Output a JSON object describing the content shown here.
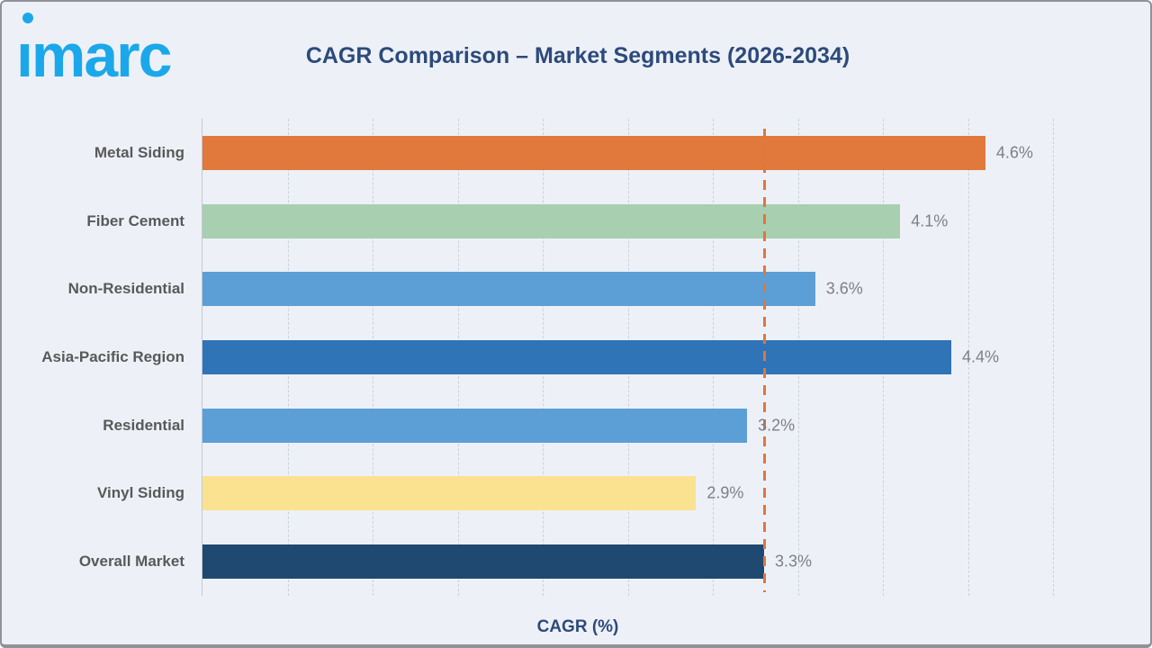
{
  "header": {
    "logo_text": "ımarc",
    "logo_color": "#1BA8EA",
    "title": "CAGR Comparison – Market Segments (2026-2034)"
  },
  "chart_data": {
    "type": "bar",
    "orientation": "horizontal",
    "title": "CAGR Comparison – Market Segments (2026-2034)",
    "xlabel": "CAGR (%)",
    "ylabel": "",
    "xlim": [
      0,
      5.5
    ],
    "grid": true,
    "gridline_interval_pct": 0.5,
    "categories": [
      "Metal Siding",
      "Fiber Cement",
      "Non-Residential",
      "Asia-Pacific Region",
      "Residential",
      "Vinyl Siding",
      "Overall Market"
    ],
    "values": [
      4.6,
      4.1,
      3.6,
      4.4,
      3.2,
      2.9,
      3.3
    ],
    "value_labels": [
      "4.6%",
      "4.1%",
      "3.6%",
      "4.4%",
      "3.2%",
      "2.9%",
      "3.3%"
    ],
    "bar_colors": [
      "#E0793B",
      "#A8CFB0",
      "#5B9FD6",
      "#2E74B6",
      "#5B9FD6",
      "#FBE291",
      "#1F4970"
    ],
    "reference_line": {
      "value": 3.3,
      "color": "#E0763B",
      "style": "dashed"
    }
  },
  "colors": {
    "background": "#EDF1F7",
    "grid": "#CBD1D9",
    "axis": "#C3C9D2",
    "title_text": "#2D4A7B",
    "category_label_text": "#595959",
    "value_label_text": "#7E8082"
  }
}
